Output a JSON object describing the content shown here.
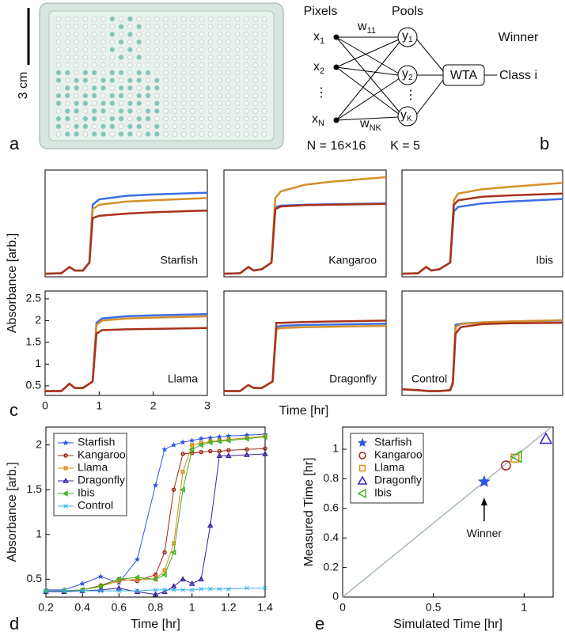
{
  "photo": {
    "scale_label": "3 cm",
    "label": "a"
  },
  "diagram": {
    "pixels": "Pixels",
    "pools": "Pools",
    "winner": "Winner",
    "class": "Class i",
    "wta": "WTA",
    "x1": {
      "base": "x",
      "sub": "1"
    },
    "x2": {
      "base": "x",
      "sub": "2"
    },
    "xn": {
      "base": "x",
      "sub": "N"
    },
    "y1": {
      "base": "y",
      "sub": "1"
    },
    "y2": {
      "base": "y",
      "sub": "2"
    },
    "yk": {
      "base": "y",
      "sub": "K"
    },
    "w11": {
      "base": "w",
      "sub": "11"
    },
    "wnk": {
      "base": "w",
      "sub": "NK"
    },
    "dots_x": "⋮",
    "dots_y": "⋮",
    "n": "N = 16×16",
    "k": "K = 5",
    "label": "b"
  },
  "panel_c_label": "c",
  "chart_data": [
    {
      "type": "line",
      "title": "Starfish",
      "title_corner": "lower right",
      "xlim": [
        0,
        3
      ],
      "ylim": [
        0.28,
        2.68
      ],
      "x": [
        0,
        0.3,
        0.45,
        0.55,
        0.7,
        0.82,
        0.88,
        1.0,
        1.5,
        2,
        3
      ],
      "series": [
        {
          "color": "#3a6ee8",
          "values": [
            0.35,
            0.36,
            0.5,
            0.42,
            0.42,
            0.6,
            1.9,
            2.02,
            2.1,
            2.13,
            2.17
          ]
        },
        {
          "color": "#d4902a",
          "values": [
            0.35,
            0.36,
            0.5,
            0.42,
            0.42,
            0.6,
            1.8,
            1.9,
            1.97,
            2.0,
            2.05
          ]
        },
        {
          "color": "#a8321a",
          "values": [
            0.35,
            0.36,
            0.5,
            0.42,
            0.42,
            0.6,
            1.6,
            1.65,
            1.7,
            1.73,
            1.77
          ]
        }
      ]
    },
    {
      "type": "line",
      "title": "Kangaroo",
      "title_corner": "lower right",
      "xlim": [
        0,
        3
      ],
      "ylim": [
        0.28,
        2.68
      ],
      "x": [
        0,
        0.3,
        0.45,
        0.55,
        0.7,
        0.88,
        0.95,
        1.05,
        1.5,
        2,
        3
      ],
      "series": [
        {
          "color": "#3a6ee8",
          "values": [
            0.35,
            0.36,
            0.5,
            0.42,
            0.45,
            0.6,
            1.85,
            1.88,
            1.9,
            1.91,
            1.93
          ]
        },
        {
          "color": "#d4902a",
          "values": [
            0.35,
            0.36,
            0.5,
            0.42,
            0.45,
            0.6,
            2.05,
            2.2,
            2.35,
            2.42,
            2.52
          ]
        },
        {
          "color": "#a8321a",
          "values": [
            0.35,
            0.36,
            0.5,
            0.42,
            0.45,
            0.6,
            1.8,
            1.86,
            1.89,
            1.9,
            1.92
          ]
        }
      ]
    },
    {
      "type": "line",
      "title": "Ibis",
      "title_corner": "lower right",
      "xlim": [
        0,
        3
      ],
      "ylim": [
        0.28,
        2.68
      ],
      "x": [
        0,
        0.3,
        0.45,
        0.55,
        0.7,
        0.9,
        0.97,
        1.05,
        1.5,
        2,
        3
      ],
      "series": [
        {
          "color": "#3a6ee8",
          "values": [
            0.35,
            0.36,
            0.5,
            0.42,
            0.45,
            0.6,
            1.75,
            1.85,
            1.93,
            1.97,
            2.03
          ]
        },
        {
          "color": "#d4902a",
          "values": [
            0.35,
            0.36,
            0.5,
            0.42,
            0.45,
            0.6,
            2.0,
            2.15,
            2.25,
            2.3,
            2.39
          ]
        },
        {
          "color": "#a8321a",
          "values": [
            0.35,
            0.36,
            0.5,
            0.42,
            0.45,
            0.6,
            1.9,
            2.0,
            2.08,
            2.11,
            2.15
          ]
        }
      ]
    },
    {
      "type": "line",
      "title": "Llama",
      "title_corner": "lower right",
      "xlim": [
        0,
        3
      ],
      "ylim": [
        0.28,
        2.68
      ],
      "xticks": [
        0,
        1,
        2,
        3
      ],
      "yticks": [
        0.5,
        1,
        1.5,
        2,
        2.5
      ],
      "xlabel": "Time [hr]",
      "ylabel": "Absorbance [arb.]",
      "x": [
        0,
        0.3,
        0.45,
        0.55,
        0.7,
        0.88,
        0.95,
        1.05,
        1.5,
        2,
        3
      ],
      "series": [
        {
          "color": "#3a6ee8",
          "values": [
            0.38,
            0.38,
            0.55,
            0.45,
            0.45,
            0.6,
            1.95,
            2.05,
            2.1,
            2.12,
            2.15
          ]
        },
        {
          "color": "#d4902a",
          "values": [
            0.38,
            0.38,
            0.55,
            0.45,
            0.45,
            0.6,
            1.9,
            2.0,
            2.05,
            2.07,
            2.1
          ]
        },
        {
          "color": "#a8321a",
          "values": [
            0.38,
            0.38,
            0.55,
            0.45,
            0.45,
            0.6,
            1.7,
            1.78,
            1.8,
            1.81,
            1.83
          ]
        }
      ]
    },
    {
      "type": "line",
      "title": "Dragonfly",
      "title_corner": "lower right",
      "xlim": [
        0,
        3
      ],
      "ylim": [
        0.28,
        2.68
      ],
      "x": [
        0,
        0.3,
        0.45,
        0.55,
        0.7,
        0.9,
        0.97,
        1.05,
        1.5,
        2,
        3
      ],
      "series": [
        {
          "color": "#3a6ee8",
          "values": [
            0.38,
            0.38,
            0.52,
            0.45,
            0.45,
            0.6,
            1.85,
            1.88,
            1.9,
            1.91,
            1.93
          ]
        },
        {
          "color": "#d4902a",
          "values": [
            0.38,
            0.38,
            0.52,
            0.45,
            0.45,
            0.6,
            1.8,
            1.83,
            1.85,
            1.86,
            1.88
          ]
        },
        {
          "color": "#a8321a",
          "values": [
            0.38,
            0.38,
            0.52,
            0.45,
            0.45,
            0.6,
            1.95,
            1.95,
            1.97,
            1.98,
            2.0
          ]
        }
      ]
    },
    {
      "type": "line",
      "title": "Control",
      "title_corner": "lower left",
      "xlim": [
        0,
        3
      ],
      "ylim": [
        0.28,
        2.68
      ],
      "x": [
        0,
        0.3,
        0.5,
        0.7,
        0.9,
        0.95,
        1.0,
        1.1,
        1.5,
        2,
        3
      ],
      "series": [
        {
          "color": "#3a6ee8",
          "values": [
            0.42,
            0.4,
            0.38,
            0.38,
            0.4,
            0.6,
            1.9,
            1.93,
            1.96,
            1.98,
            2.0
          ]
        },
        {
          "color": "#d4902a",
          "values": [
            0.42,
            0.4,
            0.38,
            0.38,
            0.4,
            0.6,
            1.85,
            1.92,
            1.96,
            1.98,
            2.01
          ]
        },
        {
          "color": "#a8321a",
          "values": [
            0.42,
            0.4,
            0.38,
            0.38,
            0.4,
            0.55,
            1.7,
            1.85,
            1.92,
            1.94,
            1.95
          ]
        }
      ]
    },
    {
      "type": "line",
      "label": "d",
      "xlabel": "Time [hr]",
      "ylabel": "Absorbance [arb.]",
      "xlim": [
        0.2,
        1.4
      ],
      "ylim": [
        0.3,
        2.2
      ],
      "xticks": [
        0.2,
        0.4,
        0.6,
        0.8,
        1,
        1.2,
        1.4
      ],
      "yticks": [
        0.5,
        1,
        1.5,
        2
      ],
      "legend": "upper left",
      "x": [
        0.2,
        0.3,
        0.4,
        0.5,
        0.6,
        0.7,
        0.8,
        0.85,
        0.9,
        0.95,
        1.0,
        1.05,
        1.1,
        1.15,
        1.2,
        1.3,
        1.4
      ],
      "series": [
        {
          "name": "Starfish",
          "color": "#2f55e6",
          "marker": "star",
          "values": [
            0.38,
            0.38,
            0.45,
            0.53,
            0.46,
            0.72,
            1.55,
            1.95,
            2.0,
            2.03,
            2.05,
            2.07,
            2.08,
            2.09,
            2.1,
            2.11,
            2.12
          ]
        },
        {
          "name": "Kangaroo",
          "color": "#a02818",
          "marker": "circle",
          "values": [
            0.37,
            0.37,
            0.38,
            0.43,
            0.5,
            0.48,
            0.55,
            0.8,
            1.5,
            1.9,
            1.91,
            1.92,
            1.93,
            1.93,
            1.94,
            1.95,
            1.96
          ]
        },
        {
          "name": "Llama",
          "color": "#e08a10",
          "marker": "square",
          "values": [
            0.37,
            0.37,
            0.38,
            0.42,
            0.48,
            0.5,
            0.5,
            0.6,
            0.9,
            1.7,
            2.0,
            2.02,
            2.04,
            2.05,
            2.06,
            2.08,
            2.1
          ]
        },
        {
          "name": "Dragonfly",
          "color": "#3a20a0",
          "marker": "triangle",
          "values": [
            0.36,
            0.36,
            0.37,
            0.38,
            0.4,
            0.36,
            0.33,
            0.36,
            0.42,
            0.5,
            0.45,
            0.5,
            1.1,
            1.88,
            1.88,
            1.89,
            1.9
          ]
        },
        {
          "name": "Ibis",
          "color": "#40b020",
          "marker": "triangle-left",
          "values": [
            0.37,
            0.37,
            0.38,
            0.42,
            0.5,
            0.52,
            0.5,
            0.55,
            0.8,
            1.5,
            1.95,
            2.0,
            2.03,
            2.04,
            2.05,
            2.07,
            2.09
          ]
        },
        {
          "name": "Control",
          "color": "#30b0e8",
          "marker": "x",
          "values": [
            0.37,
            0.37,
            0.37,
            0.37,
            0.37,
            0.37,
            0.38,
            0.38,
            0.38,
            0.38,
            0.38,
            0.39,
            0.39,
            0.39,
            0.39,
            0.4,
            0.4
          ]
        }
      ]
    },
    {
      "type": "scatter",
      "label": "e",
      "xlabel": "Simulated Time [hr]",
      "ylabel": "Measured Time [hr]",
      "xlim": [
        0,
        1.16
      ],
      "ylim": [
        0,
        1.15
      ],
      "xticks": [
        0,
        0.5,
        1
      ],
      "yticks": [
        0,
        0.2,
        0.4,
        0.6,
        0.8,
        1
      ],
      "legend": "upper left",
      "annotation": "Winner",
      "series": [
        {
          "name": "Starfish",
          "color": "#2f55e6",
          "marker": "star",
          "x": [
            0.78
          ],
          "values": [
            0.78
          ]
        },
        {
          "name": "Kangaroo",
          "color": "#a02818",
          "marker": "circle",
          "x": [
            0.9
          ],
          "values": [
            0.89
          ]
        },
        {
          "name": "Llama",
          "color": "#e08a10",
          "marker": "square",
          "x": [
            0.95
          ],
          "values": [
            0.94
          ]
        },
        {
          "name": "Dragonfly",
          "color": "#3a20c0",
          "marker": "triangle",
          "x": [
            1.12
          ],
          "values": [
            1.07
          ]
        },
        {
          "name": "Ibis",
          "color": "#40b020",
          "marker": "triangle-left",
          "x": [
            0.96
          ],
          "values": [
            0.95
          ]
        }
      ]
    }
  ]
}
